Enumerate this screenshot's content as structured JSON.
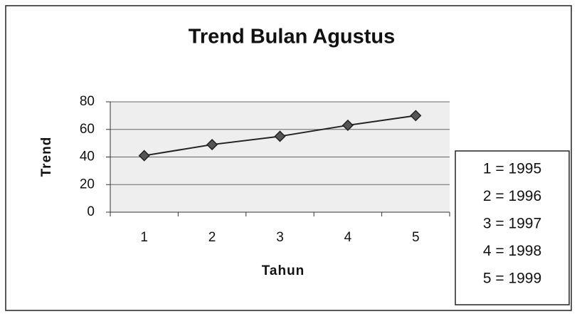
{
  "chart_data": {
    "type": "line",
    "title": "Trend Bulan Agustus",
    "x_label": "Tahun",
    "y_label": "Trend",
    "categories": [
      "1",
      "2",
      "3",
      "4",
      "5"
    ],
    "values": [
      41,
      49,
      55,
      63,
      70
    ],
    "color": "#222222",
    "ylim": [
      0,
      80
    ],
    "yticks": [
      0,
      20,
      40,
      60,
      80
    ],
    "grid": true,
    "notes": [
      "1 = 1995",
      "2 = 1996",
      "3 = 1997",
      "4 = 1998",
      "5 = 1999"
    ]
  }
}
